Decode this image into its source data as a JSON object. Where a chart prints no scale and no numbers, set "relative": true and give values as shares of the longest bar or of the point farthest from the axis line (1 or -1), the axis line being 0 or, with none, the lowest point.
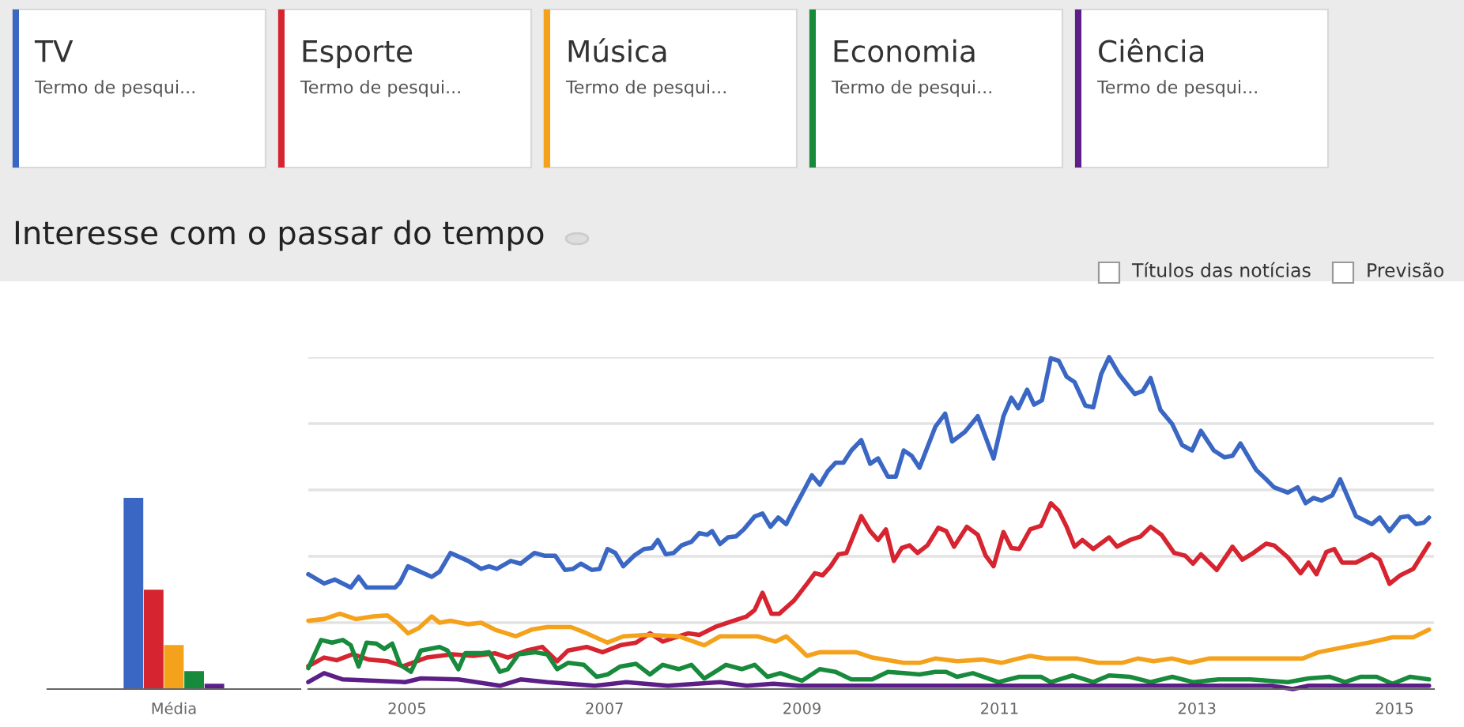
{
  "chart_data": [
    {
      "type": "bar",
      "relative": true,
      "categories": [
        "Média"
      ],
      "series": [
        {
          "color": "#3b67c4",
          "values": [
            1
          ]
        },
        {
          "color": "#d62430",
          "values": [
            0.52
          ]
        },
        {
          "color": "#f4a21c",
          "values": [
            0.23
          ]
        },
        {
          "color": "#178a3c",
          "values": [
            0.094
          ]
        },
        {
          "color": "#5c1e87",
          "values": [
            0.028
          ]
        }
      ]
    },
    {
      "type": "line",
      "relative": true,
      "title": "Interesse com o passar do tempo",
      "legend": "top",
      "grid": "y",
      "xlim": [
        2004,
        2015.4
      ],
      "xticks": [
        2005,
        2007,
        2009,
        2011,
        2013,
        2015
      ],
      "annotations": [
        "Termo de pesqui...",
        "Termo de pesqui...",
        "Termo de pesqui...",
        "Termo de pesqui...",
        "Termo de pesqui...",
        "Títulos das notícias",
        "Previsão"
      ],
      "series": [
        {
          "name": "TV",
          "color": "#3b67c4",
          "x": [
            2004.0,
            2004.16,
            2004.27,
            2004.43,
            2004.51,
            2004.59,
            2004.88,
            2004.93,
            2005.01,
            2005.25,
            2005.33,
            2005.44,
            2005.62,
            2005.75,
            2005.83,
            2005.91,
            2006.05,
            2006.15,
            2006.29,
            2006.39,
            2006.5,
            2006.6,
            2006.68,
            2006.76,
            2006.87,
            2006.95,
            2007.03,
            2007.11,
            2007.19,
            2007.3,
            2007.4,
            2007.48,
            2007.54,
            2007.62,
            2007.7,
            2007.78,
            2007.88,
            2007.96,
            2008.04,
            2008.09,
            2008.17,
            2008.25,
            2008.33,
            2008.41,
            2008.52,
            2008.6,
            2008.68,
            2008.76,
            2008.84,
            2008.92,
            2009.05,
            2009.1,
            2009.18,
            2009.26,
            2009.34,
            2009.42,
            2009.5,
            2009.6,
            2009.69,
            2009.77,
            2009.87,
            2009.95,
            2010.03,
            2010.11,
            2010.19,
            2010.35,
            2010.45,
            2010.52,
            2010.65,
            2010.78,
            2010.94,
            2011.04,
            2011.12,
            2011.19,
            2011.28,
            2011.35,
            2011.43,
            2011.52,
            2011.6,
            2011.68,
            2011.76,
            2011.87,
            2011.95,
            2012.03,
            2012.11,
            2012.21,
            2012.37,
            2012.45,
            2012.53,
            2012.63,
            2012.75,
            2012.85,
            2012.95,
            2013.04,
            2013.17,
            2013.28,
            2013.36,
            2013.44,
            2013.6,
            2013.7,
            2013.78,
            2013.92,
            2014.02,
            2014.1,
            2014.18,
            2014.26,
            2014.37,
            2014.45,
            2014.61,
            2014.77,
            2014.85,
            2014.95,
            2015.06,
            2015.14,
            2015.22,
            2015.3,
            2015.35
          ],
          "values": [
            0.346,
            0.318,
            0.33,
            0.306,
            0.338,
            0.306,
            0.306,
            0.322,
            0.37,
            0.338,
            0.354,
            0.41,
            0.386,
            0.362,
            0.37,
            0.362,
            0.386,
            0.378,
            0.41,
            0.402,
            0.402,
            0.359,
            0.362,
            0.378,
            0.359,
            0.362,
            0.422,
            0.41,
            0.37,
            0.402,
            0.422,
            0.425,
            0.449,
            0.406,
            0.41,
            0.433,
            0.444,
            0.47,
            0.465,
            0.476,
            0.437,
            0.457,
            0.46,
            0.481,
            0.52,
            0.529,
            0.489,
            0.517,
            0.497,
            0.544,
            0.616,
            0.644,
            0.616,
            0.656,
            0.682,
            0.682,
            0.719,
            0.75,
            0.679,
            0.695,
            0.64,
            0.64,
            0.719,
            0.703,
            0.667,
            0.79,
            0.83,
            0.746,
            0.775,
            0.822,
            0.695,
            0.822,
            0.878,
            0.846,
            0.902,
            0.857,
            0.87,
            0.997,
            0.989,
            0.941,
            0.925,
            0.854,
            0.849,
            0.949,
            1.0,
            0.949,
            0.889,
            0.898,
            0.937,
            0.841,
            0.798,
            0.735,
            0.719,
            0.778,
            0.719,
            0.698,
            0.703,
            0.74,
            0.66,
            0.632,
            0.608,
            0.592,
            0.608,
            0.56,
            0.576,
            0.568,
            0.584,
            0.632,
            0.521,
            0.497,
            0.517,
            0.476,
            0.517,
            0.521,
            0.497,
            0.502,
            0.517
          ]
        },
        {
          "name": "Esporte",
          "color": "#d62430",
          "x": [
            2004.0,
            2004.16,
            2004.29,
            2004.45,
            2004.61,
            2004.8,
            2004.96,
            2005.2,
            2005.46,
            2005.67,
            2005.89,
            2006.02,
            2006.21,
            2006.37,
            2006.52,
            2006.63,
            2006.82,
            2006.98,
            2007.16,
            2007.32,
            2007.46,
            2007.59,
            2007.72,
            2007.85,
            2007.96,
            2008.12,
            2008.28,
            2008.44,
            2008.52,
            2008.6,
            2008.69,
            2008.77,
            2008.92,
            2009.05,
            2009.13,
            2009.21,
            2009.29,
            2009.37,
            2009.45,
            2009.6,
            2009.69,
            2009.77,
            2009.85,
            2009.93,
            2010.01,
            2010.09,
            2010.17,
            2010.27,
            2010.38,
            2010.46,
            2010.54,
            2010.67,
            2010.78,
            2010.86,
            2010.94,
            2011.04,
            2011.12,
            2011.2,
            2011.31,
            2011.42,
            2011.52,
            2011.6,
            2011.68,
            2011.76,
            2011.84,
            2011.95,
            2012.11,
            2012.19,
            2012.32,
            2012.43,
            2012.53,
            2012.64,
            2012.77,
            2012.88,
            2012.96,
            2013.04,
            2013.2,
            2013.36,
            2013.46,
            2013.57,
            2013.7,
            2013.78,
            2013.92,
            2014.05,
            2014.13,
            2014.21,
            2014.31,
            2014.39,
            2014.47,
            2014.61,
            2014.77,
            2014.85,
            2014.95,
            2015.06,
            2015.19,
            2015.35
          ],
          "values": [
            0.069,
            0.095,
            0.087,
            0.105,
            0.089,
            0.084,
            0.069,
            0.095,
            0.105,
            0.1,
            0.108,
            0.095,
            0.116,
            0.127,
            0.084,
            0.116,
            0.127,
            0.111,
            0.132,
            0.14,
            0.168,
            0.143,
            0.156,
            0.168,
            0.163,
            0.187,
            0.203,
            0.219,
            0.238,
            0.29,
            0.227,
            0.227,
            0.267,
            0.317,
            0.349,
            0.343,
            0.37,
            0.406,
            0.41,
            0.521,
            0.476,
            0.449,
            0.481,
            0.386,
            0.425,
            0.433,
            0.41,
            0.433,
            0.486,
            0.476,
            0.429,
            0.489,
            0.465,
            0.402,
            0.37,
            0.473,
            0.425,
            0.422,
            0.481,
            0.492,
            0.56,
            0.537,
            0.489,
            0.429,
            0.449,
            0.422,
            0.457,
            0.429,
            0.449,
            0.46,
            0.489,
            0.465,
            0.41,
            0.402,
            0.378,
            0.406,
            0.359,
            0.429,
            0.39,
            0.41,
            0.438,
            0.433,
            0.397,
            0.349,
            0.381,
            0.346,
            0.413,
            0.422,
            0.381,
            0.381,
            0.406,
            0.39,
            0.317,
            0.343,
            0.362,
            0.438
          ]
        },
        {
          "name": "Música",
          "color": "#f4a21c",
          "x": [
            2004.0,
            2004.16,
            2004.32,
            2004.48,
            2004.66,
            2004.8,
            2004.9,
            2005.01,
            2005.12,
            2005.25,
            2005.33,
            2005.44,
            2005.62,
            2005.75,
            2005.89,
            2006.1,
            2006.26,
            2006.42,
            2006.66,
            2006.82,
            2007.03,
            2007.19,
            2007.43,
            2007.75,
            2008.01,
            2008.17,
            2008.33,
            2008.55,
            2008.73,
            2008.84,
            2008.94,
            2009.05,
            2009.18,
            2009.55,
            2009.71,
            2010.03,
            2010.19,
            2010.35,
            2010.57,
            2010.83,
            2011.02,
            2011.15,
            2011.31,
            2011.47,
            2011.79,
            2012.0,
            2012.24,
            2012.4,
            2012.56,
            2012.75,
            2012.93,
            2013.12,
            2013.54,
            2014.07,
            2014.23,
            2014.5,
            2014.74,
            2014.98,
            2015.19,
            2015.35
          ],
          "values": [
            0.206,
            0.211,
            0.227,
            0.211,
            0.219,
            0.222,
            0.2,
            0.168,
            0.184,
            0.219,
            0.2,
            0.206,
            0.195,
            0.2,
            0.179,
            0.159,
            0.179,
            0.187,
            0.187,
            0.168,
            0.14,
            0.159,
            0.163,
            0.159,
            0.132,
            0.159,
            0.159,
            0.159,
            0.143,
            0.159,
            0.132,
            0.1,
            0.111,
            0.111,
            0.095,
            0.079,
            0.079,
            0.092,
            0.084,
            0.089,
            0.079,
            0.089,
            0.1,
            0.092,
            0.092,
            0.079,
            0.079,
            0.092,
            0.084,
            0.092,
            0.079,
            0.092,
            0.092,
            0.092,
            0.111,
            0.127,
            0.14,
            0.156,
            0.156,
            0.179
          ]
        },
        {
          "name": "Economia",
          "color": "#178a3c",
          "x": [
            2004.0,
            2004.13,
            2004.24,
            2004.35,
            2004.43,
            2004.51,
            2004.59,
            2004.69,
            2004.77,
            2004.85,
            2004.93,
            2005.04,
            2005.14,
            2005.33,
            2005.41,
            2005.52,
            2005.59,
            2005.75,
            2005.83,
            2005.94,
            2006.02,
            2006.13,
            2006.29,
            2006.42,
            2006.52,
            2006.63,
            2006.79,
            2006.92,
            2007.03,
            2007.16,
            2007.32,
            2007.46,
            2007.59,
            2007.75,
            2007.88,
            2008.01,
            2008.12,
            2008.23,
            2008.39,
            2008.52,
            2008.65,
            2008.78,
            2009.0,
            2009.18,
            2009.34,
            2009.5,
            2009.71,
            2009.87,
            2010.03,
            2010.19,
            2010.35,
            2010.46,
            2010.57,
            2010.73,
            2010.99,
            2011.2,
            2011.42,
            2011.52,
            2011.74,
            2011.95,
            2012.11,
            2012.32,
            2012.53,
            2012.75,
            2012.96,
            2013.22,
            2013.54,
            2013.92,
            2014.13,
            2014.34,
            2014.5,
            2014.66,
            2014.82,
            2014.98,
            2015.16,
            2015.35
          ],
          "values": [
            0.063,
            0.148,
            0.14,
            0.148,
            0.132,
            0.068,
            0.14,
            0.137,
            0.121,
            0.137,
            0.073,
            0.052,
            0.116,
            0.127,
            0.116,
            0.06,
            0.108,
            0.108,
            0.111,
            0.052,
            0.06,
            0.105,
            0.111,
            0.105,
            0.06,
            0.079,
            0.073,
            0.037,
            0.044,
            0.068,
            0.076,
            0.044,
            0.073,
            0.06,
            0.073,
            0.032,
            0.052,
            0.073,
            0.06,
            0.073,
            0.037,
            0.048,
            0.025,
            0.06,
            0.052,
            0.029,
            0.029,
            0.052,
            0.048,
            0.044,
            0.052,
            0.052,
            0.037,
            0.048,
            0.021,
            0.037,
            0.037,
            0.021,
            0.041,
            0.021,
            0.041,
            0.037,
            0.021,
            0.037,
            0.021,
            0.029,
            0.029,
            0.021,
            0.032,
            0.037,
            0.021,
            0.037,
            0.037,
            0.016,
            0.037,
            0.029
          ]
        },
        {
          "name": "Ciência",
          "color": "#5c1e87",
          "x": [
            2004.0,
            2004.16,
            2004.35,
            2004.98,
            2005.14,
            2005.52,
            2005.94,
            2006.15,
            2006.42,
            2006.9,
            2007.22,
            2007.64,
            2008.17,
            2008.44,
            2008.71,
            2008.97,
            2009.77,
            2010.57,
            2012.16,
            2013.76,
            2013.97,
            2014.13,
            2015.35
          ],
          "values": [
            0.021,
            0.048,
            0.029,
            0.021,
            0.032,
            0.029,
            0.01,
            0.029,
            0.021,
            0.01,
            0.021,
            0.01,
            0.021,
            0.01,
            0.016,
            0.01,
            0.01,
            0.01,
            0.01,
            0.01,
            0,
            0.01,
            0.01
          ]
        }
      ]
    }
  ]
}
